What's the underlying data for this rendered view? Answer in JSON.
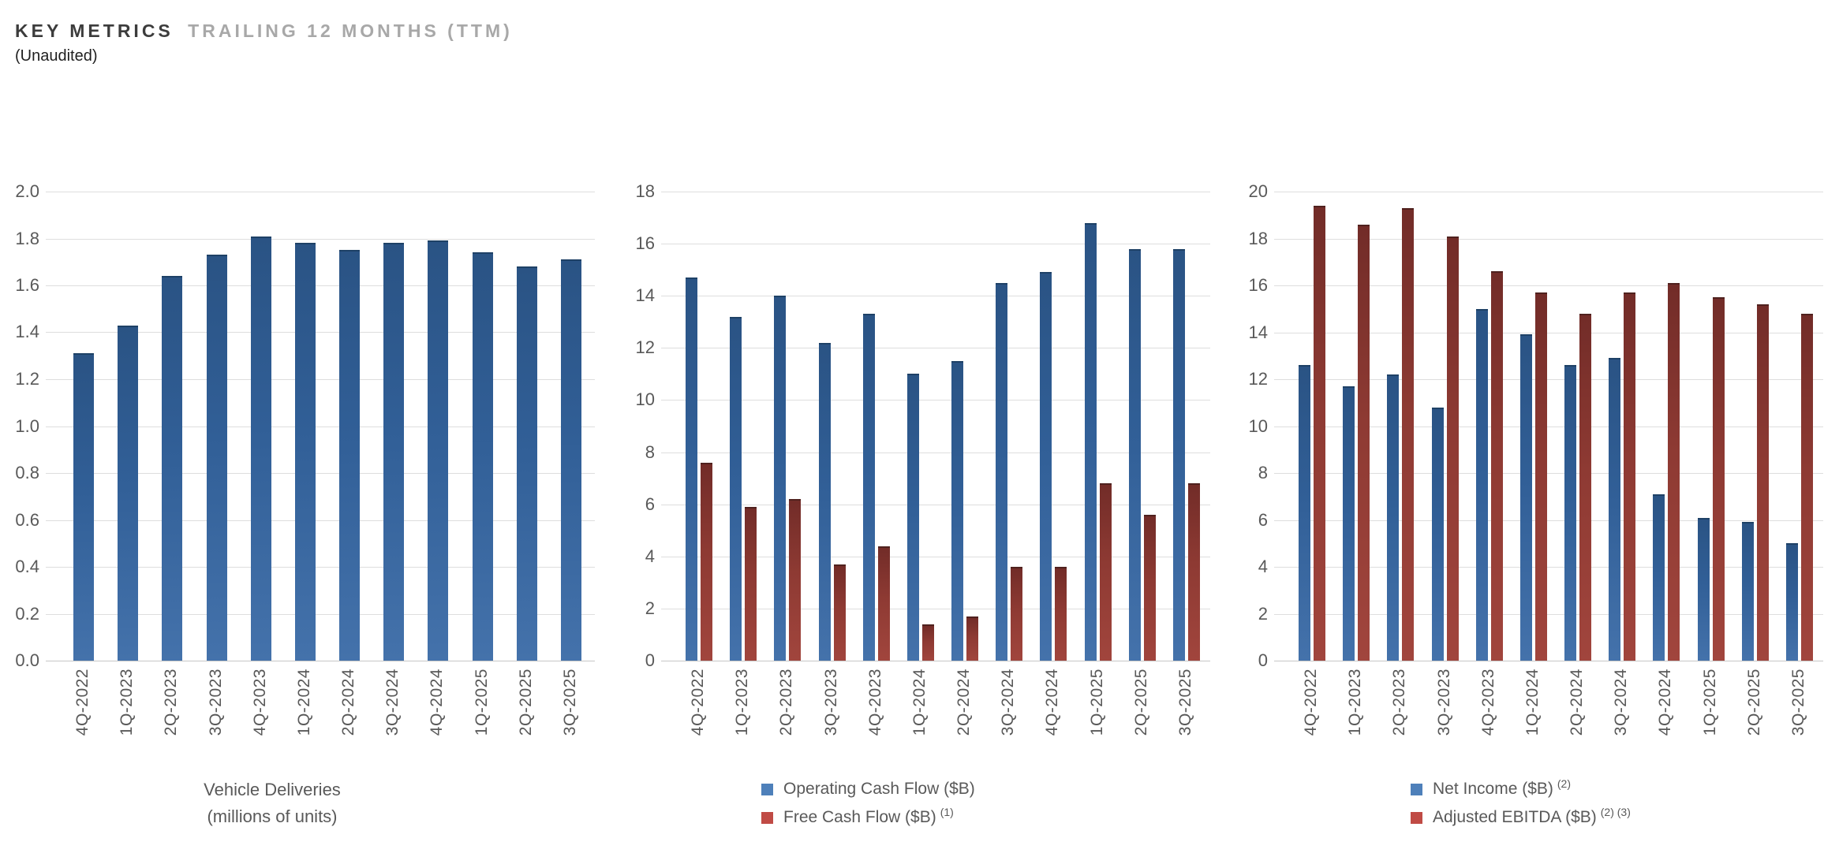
{
  "header": {
    "title_primary": "KEY METRICS",
    "title_secondary": "TRAILING 12 MONTHS (TTM)",
    "subtitle": "(Unaudited)"
  },
  "colors": {
    "blue_bar_cap": "#1e4166",
    "blue_bar_dark": "#2a5384",
    "blue_bar_mid": "#315f97",
    "blue_bar_light": "#4472ab",
    "red_bar_cap": "#4f211e",
    "red_bar_dark": "#722c28",
    "red_bar_mid": "#8e3a33",
    "red_bar_light": "#a1453d",
    "legend_blue": "#4e80ba",
    "legend_red": "#c04b45",
    "axis_text": "#595959",
    "gridline": "#dedede",
    "axis_line": "#c6c6c6",
    "title_primary_color": "#3c3c3c",
    "title_secondary_color": "#a8a8a8",
    "subtitle_color": "#1f1f1f"
  },
  "chart_data": [
    {
      "type": "bar",
      "title": "Vehicle Deliveries (millions of units)",
      "axis_title_lines": [
        "Vehicle Deliveries",
        "(millions of units)"
      ],
      "categories": [
        "4Q-2022",
        "1Q-2023",
        "2Q-2023",
        "3Q-2023",
        "4Q-2023",
        "1Q-2024",
        "2Q-2024",
        "3Q-2024",
        "4Q-2024",
        "1Q-2025",
        "2Q-2025",
        "3Q-2025"
      ],
      "series": [
        {
          "name": "Vehicle Deliveries",
          "color": "blue",
          "superscript": "",
          "values": [
            1.31,
            1.43,
            1.64,
            1.73,
            1.81,
            1.78,
            1.75,
            1.78,
            1.79,
            1.74,
            1.68,
            1.71
          ]
        }
      ],
      "ylim": [
        0,
        2.0
      ],
      "ytick_step": 0.2,
      "ytick_decimals": 1,
      "grid": true,
      "legend": false,
      "legend_position": null
    },
    {
      "type": "bar",
      "title": "Operating Cash Flow vs Free Cash Flow",
      "axis_title_lines": null,
      "categories": [
        "4Q-2022",
        "1Q-2023",
        "2Q-2023",
        "3Q-2023",
        "4Q-2023",
        "1Q-2024",
        "2Q-2024",
        "3Q-2024",
        "4Q-2024",
        "1Q-2025",
        "2Q-2025",
        "3Q-2025"
      ],
      "series": [
        {
          "name": "Operating Cash Flow ($B)",
          "color": "blue",
          "superscript": "",
          "values": [
            14.7,
            13.2,
            14.0,
            12.2,
            13.3,
            11.0,
            11.5,
            14.5,
            14.9,
            16.8,
            15.8,
            15.8
          ]
        },
        {
          "name": "Free Cash Flow ($B)",
          "color": "red",
          "superscript": "(1)",
          "values": [
            7.6,
            5.9,
            6.2,
            3.7,
            4.4,
            1.4,
            1.7,
            3.6,
            3.6,
            6.8,
            5.6,
            6.8
          ]
        }
      ],
      "ylim": [
        0,
        18
      ],
      "ytick_step": 2,
      "ytick_decimals": 0,
      "grid": true,
      "legend": true,
      "legend_position": "bottom"
    },
    {
      "type": "bar",
      "title": "Net Income vs Adjusted EBITDA",
      "axis_title_lines": null,
      "categories": [
        "4Q-2022",
        "1Q-2023",
        "2Q-2023",
        "3Q-2023",
        "4Q-2023",
        "1Q-2024",
        "2Q-2024",
        "3Q-2024",
        "4Q-2024",
        "1Q-2025",
        "2Q-2025",
        "3Q-2025"
      ],
      "series": [
        {
          "name": "Net Income ($B)",
          "color": "blue",
          "superscript": "(2)",
          "values": [
            12.6,
            11.7,
            12.2,
            10.8,
            15.0,
            13.9,
            12.6,
            12.9,
            7.1,
            6.1,
            5.9,
            5.0
          ]
        },
        {
          "name": "Adjusted EBITDA ($B)",
          "color": "red",
          "superscript": "(2) (3)",
          "values": [
            19.4,
            18.6,
            19.3,
            18.1,
            16.6,
            15.7,
            14.8,
            15.7,
            16.1,
            15.5,
            15.2,
            14.8
          ]
        }
      ],
      "ylim": [
        0,
        20
      ],
      "ytick_step": 2,
      "ytick_decimals": 0,
      "grid": true,
      "legend": true,
      "legend_position": "bottom"
    }
  ]
}
